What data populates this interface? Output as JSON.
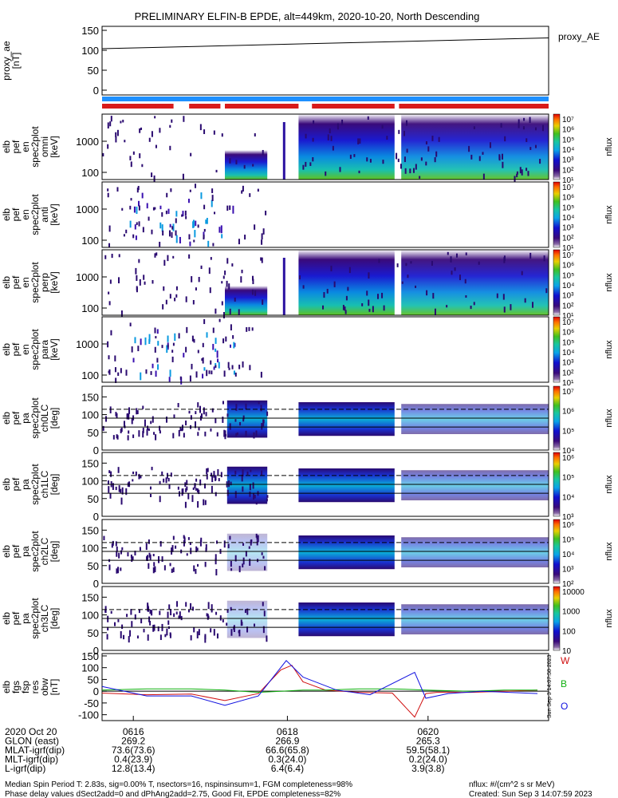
{
  "title": "PRELIMINARY ELFIN-B EPDE, alt=449km, 2020-10-20, North Descending",
  "colors": {
    "science_bar": "#d81b1b",
    "orbit_bar": "#1e90ff",
    "bx": "#1010e0",
    "by": "#10b010",
    "bz": "#d01010"
  },
  "proxy_ae": {
    "ylabel": [
      "proxy_ae",
      "[nT]"
    ],
    "ticks": [
      "150",
      "100",
      "50",
      "0"
    ],
    "tick_vals": [
      150,
      100,
      50,
      0
    ],
    "ylim": [
      -12,
      160
    ],
    "legend": "proxy_AE",
    "points": [
      [
        0,
        104
      ],
      [
        1,
        131
      ]
    ]
  },
  "spectro_panels": [
    {
      "id": "omni",
      "label": [
        "elb",
        "pef",
        "en",
        "spec2plot",
        "omni",
        "[keV]"
      ],
      "ticks": [
        "1000",
        "100"
      ],
      "cb_labels": [
        "10⁷",
        "10⁶",
        "10⁵",
        "10⁴",
        "10³",
        "10²",
        "10¹"
      ],
      "cb_unit": "nflux"
    },
    {
      "id": "anti",
      "label": [
        "elb",
        "pef",
        "en",
        "spec2plot",
        "anti",
        "[keV]"
      ],
      "ticks": [
        "1000",
        "100"
      ],
      "cb_labels": [
        "10⁷",
        "10⁶",
        "10⁵",
        "10⁴",
        "10³",
        "10²",
        "10¹"
      ],
      "cb_unit": "nflux"
    },
    {
      "id": "perp",
      "label": [
        "elb",
        "pef",
        "en",
        "spec2plot",
        "perp",
        "[keV]"
      ],
      "ticks": [
        "1000",
        "100"
      ],
      "cb_labels": [
        "10⁷",
        "10⁶",
        "10⁵",
        "10⁴",
        "10³",
        "10²",
        "10¹"
      ],
      "cb_unit": "nflux"
    },
    {
      "id": "para",
      "label": [
        "elb",
        "pef",
        "en",
        "spec2plot",
        "para",
        "[keV]"
      ],
      "ticks": [
        "1000",
        "100"
      ],
      "cb_labels": [
        "10⁷",
        "10⁶",
        "10⁵",
        "10⁴",
        "10³",
        "10²",
        "10¹"
      ],
      "cb_unit": "nflux"
    }
  ],
  "pitch_panels": [
    {
      "id": "ch0LC",
      "label": [
        "elb",
        "pef",
        "pa",
        "spec2plot",
        "ch0LC",
        "[deg]"
      ],
      "ticks": [
        "150",
        "100",
        "50",
        "0"
      ],
      "cb_labels": [
        "10⁷",
        "10⁶",
        "10⁵",
        "10⁴"
      ],
      "cb_unit": "nflux"
    },
    {
      "id": "ch1LC",
      "label": [
        "elb",
        "pef",
        "pa",
        "spec2plot",
        "ch1LC",
        "[deg]"
      ],
      "ticks": [
        "150",
        "100",
        "50",
        "0"
      ],
      "cb_labels": [
        "10⁶",
        "10⁵",
        "10⁴",
        "10³"
      ],
      "cb_unit": "nflux"
    },
    {
      "id": "ch2LC",
      "label": [
        "elb",
        "pef",
        "pa",
        "spec2plot",
        "ch2LC",
        "[deg]"
      ],
      "ticks": [
        "150",
        "100",
        "50",
        "0"
      ],
      "cb_labels": [
        "10⁶",
        "10⁵",
        "10⁴",
        "10³",
        "10²"
      ],
      "cb_unit": "nflux"
    },
    {
      "id": "ch3LC",
      "label": [
        "elb",
        "pef",
        "pa",
        "spec2plot",
        "ch3LC",
        "[deg]"
      ],
      "ticks": [
        "150",
        "100",
        "50",
        "0"
      ],
      "cb_labels": [
        "10000",
        "1000",
        "100",
        "10"
      ],
      "cb_unit": "nflux"
    }
  ],
  "bfield": {
    "label": [
      "elb",
      "fgs",
      "fsp",
      "res",
      "obw",
      "[nT]"
    ],
    "ticks": [
      "150",
      "100",
      "50",
      "0",
      "-50",
      "-100"
    ],
    "tick_vals": [
      150,
      100,
      50,
      0,
      -50,
      -100
    ],
    "ylim": [
      -125,
      160
    ],
    "legend": [
      "W",
      "B",
      "O"
    ]
  },
  "chart_data": [
    {
      "type": "line",
      "title": "PRELIMINARY ELFIN-B EPDE, alt=449km, 2020-10-20, North Descending",
      "ylabel": "proxy_ae [nT]",
      "xlim": [
        "06:15:00",
        "06:21:40"
      ],
      "series": [
        {
          "name": "proxy_AE",
          "x": [
            "06:15:00",
            "06:21:40"
          ],
          "values": [
            104,
            131
          ]
        }
      ],
      "ylim": [
        -12,
        160
      ]
    },
    {
      "type": "line",
      "ylabel": "elb fgs fsp res obw [nT]",
      "xlim": [
        "06:15:00",
        "06:21:40"
      ],
      "series": [
        {
          "name": "W",
          "x": [
            "06:15:00",
            "06:15:40",
            "06:16:20",
            "06:16:50",
            "06:17:20",
            "06:17:40",
            "06:17:50",
            "06:18:00",
            "06:18:20",
            "06:18:50",
            "06:19:20",
            "06:19:40",
            "06:19:50",
            "06:20:00",
            "06:20:30",
            "06:21:00",
            "06:21:30"
          ],
          "values": [
            -8,
            -15,
            -12,
            -40,
            -10,
            90,
            110,
            40,
            5,
            -5,
            -8,
            -110,
            -10,
            -5,
            -5,
            0,
            5
          ]
        },
        {
          "name": "B",
          "x": [
            "06:15:00",
            "06:15:40",
            "06:16:20",
            "06:16:50",
            "06:17:20",
            "06:17:40",
            "06:18:00",
            "06:18:20",
            "06:18:50",
            "06:19:20",
            "06:19:50",
            "06:20:30",
            "06:21:00",
            "06:21:30"
          ],
          "values": [
            5,
            10,
            10,
            5,
            -5,
            0,
            5,
            5,
            10,
            10,
            5,
            0,
            5,
            5
          ]
        },
        {
          "name": "O",
          "x": [
            "06:15:00",
            "06:15:40",
            "06:16:20",
            "06:16:50",
            "06:17:20",
            "06:17:45",
            "06:18:00",
            "06:18:30",
            "06:19:00",
            "06:19:40",
            "06:19:50",
            "06:20:10",
            "06:20:40",
            "06:21:30"
          ],
          "values": [
            20,
            -20,
            -20,
            -60,
            -20,
            130,
            60,
            5,
            -15,
            80,
            -30,
            -10,
            0,
            -10
          ]
        }
      ],
      "ylim": [
        -125,
        160
      ]
    }
  ],
  "footer_rows": [
    {
      "label": "2020 Oct 20",
      "v": [
        "0616",
        "0618",
        "0620"
      ]
    },
    {
      "label": "GLON (east)",
      "v": [
        "269.2",
        "266.9",
        "265.3"
      ]
    },
    {
      "label": "MLAT-igrf(dip)",
      "v": [
        "73.6(73.6)",
        "66.6(65.8)",
        "59.5(58.1)"
      ]
    },
    {
      "label": "MLT-igrf(dip)",
      "v": [
        "0.4(23.9)",
        "0.3(24.0)",
        "0.2(24.0)"
      ]
    },
    {
      "label": "L-igrf(dip)",
      "v": [
        "12.8(13.4)",
        "6.4(6.4)",
        "3.9(3.8)"
      ]
    }
  ],
  "footer_notes": {
    "line1": "Median Spin Period T: 2.83s, sig=0.00% T, nsectors=16, nspinsinsum=1, FGM completeness=98%",
    "line2": "Phase delay values dSect2add=0 and dPhAng2add=2.75, Good Fit, EPDE completeness=82%",
    "units": "nflux: #/(cm^2 s sr MeV)",
    "created": "Created: Sun Sep  3 14:07:59 2023",
    "side_stamp": "Sun Sep  3 14:07:58 2023"
  }
}
